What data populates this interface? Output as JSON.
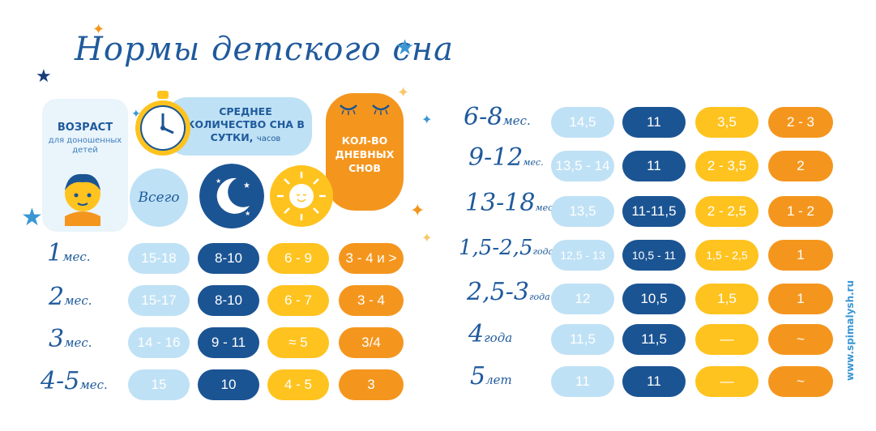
{
  "title": "Нормы детского сна",
  "headers": {
    "age_main": "ВОЗРАСТ",
    "age_sub": "для доношенных детей",
    "avg_main": "СРЕДНЕЕ КОЛИЧЕСТВО СНА В СУТКИ,",
    "avg_unit": "часов",
    "naps": "КОЛ-ВО ДНЕВНЫХ СНОВ",
    "total": "Всего"
  },
  "colors": {
    "light": "#bfe1f5",
    "navy": "#1b5493",
    "yellow": "#ffc31f",
    "orange": "#f4961e"
  },
  "left_rows": [
    {
      "age": "1",
      "age_unit": "мес.",
      "total": "15-18",
      "night": "8-10",
      "day": "6 - 9",
      "naps": "3 - 4 и >"
    },
    {
      "age": "2",
      "age_unit": "мес.",
      "total": "15-17",
      "night": "8-10",
      "day": "6 - 7",
      "naps": "3 - 4"
    },
    {
      "age": "3",
      "age_unit": "мес.",
      "total": "14 - 16",
      "night": "9 - 11",
      "day": "≈ 5",
      "naps": "3/4"
    },
    {
      "age": "4-5",
      "age_unit": "мес.",
      "total": "15",
      "night": "10",
      "day": "4 - 5",
      "naps": "3"
    }
  ],
  "right_rows": [
    {
      "age": "6-8",
      "age_unit": "мес.",
      "total": "14,5",
      "night": "11",
      "day": "3,5",
      "naps": "2 - 3"
    },
    {
      "age": "9-12",
      "age_unit": "мес.",
      "total": "13,5 - 14",
      "night": "11",
      "day": "2 - 3,5",
      "naps": "2"
    },
    {
      "age": "13-18",
      "age_unit": "мес.",
      "total": "13,5",
      "night": "11-11,5",
      "day": "2 - 2,5",
      "naps": "1 - 2"
    },
    {
      "age": "1,5-2,5",
      "age_unit": "года",
      "total": "12,5 - 13",
      "night": "10,5 - 11",
      "day": "1,5 - 2,5",
      "naps": "1"
    },
    {
      "age": "2,5-3",
      "age_unit": "года",
      "total": "12",
      "night": "10,5",
      "day": "1,5",
      "naps": "1"
    },
    {
      "age": "4",
      "age_unit": "года",
      "total": "11,5",
      "night": "11,5",
      "day": "—",
      "naps": "~"
    },
    {
      "age": "5",
      "age_unit": "лет",
      "total": "11",
      "night": "11",
      "day": "—",
      "naps": "~"
    }
  ],
  "website": "www.spimalysh.ru"
}
